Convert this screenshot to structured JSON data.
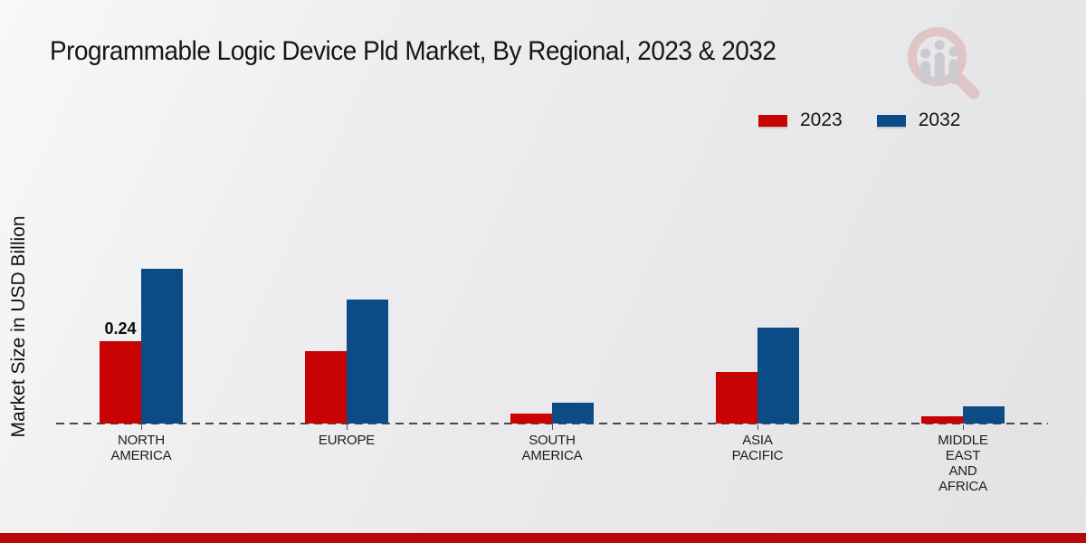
{
  "title": "Programmable Logic Device Pld Market, By Regional, 2023 & 2032",
  "y_axis_label": "Market Size in USD Billion",
  "footer_band_color": "#b80808",
  "watermark_icon": "magnifier-bar-chart-logo-icon",
  "legend": {
    "items": [
      {
        "label": "2023",
        "color": "#c80303"
      },
      {
        "label": "2032",
        "color": "#0b4b86"
      }
    ]
  },
  "chart_data": {
    "type": "bar",
    "title": "Programmable Logic Device Pld Market, By Regional, 2023 & 2032",
    "categories": [
      "NORTH AMERICA",
      "EUROPE",
      "SOUTH AMERICA",
      "ASIA PACIFIC",
      "MIDDLE EAST AND AFRICA"
    ],
    "series": [
      {
        "name": "2023",
        "color": "#c80303",
        "values": [
          0.24,
          0.21,
          0.03,
          0.15,
          0.02
        ]
      },
      {
        "name": "2032",
        "color": "#0b4b86",
        "values": [
          0.45,
          0.36,
          0.06,
          0.28,
          0.05
        ]
      }
    ],
    "data_labels": [
      {
        "series": "2023",
        "category": "NORTH AMERICA",
        "text": "0.24"
      }
    ],
    "xlabel": "",
    "ylabel": "Market Size in USD Billion",
    "ylim": [
      0,
      0.5
    ],
    "grid": false,
    "axis_style": "dashed-zero-baseline",
    "legend_position": "top-right"
  }
}
